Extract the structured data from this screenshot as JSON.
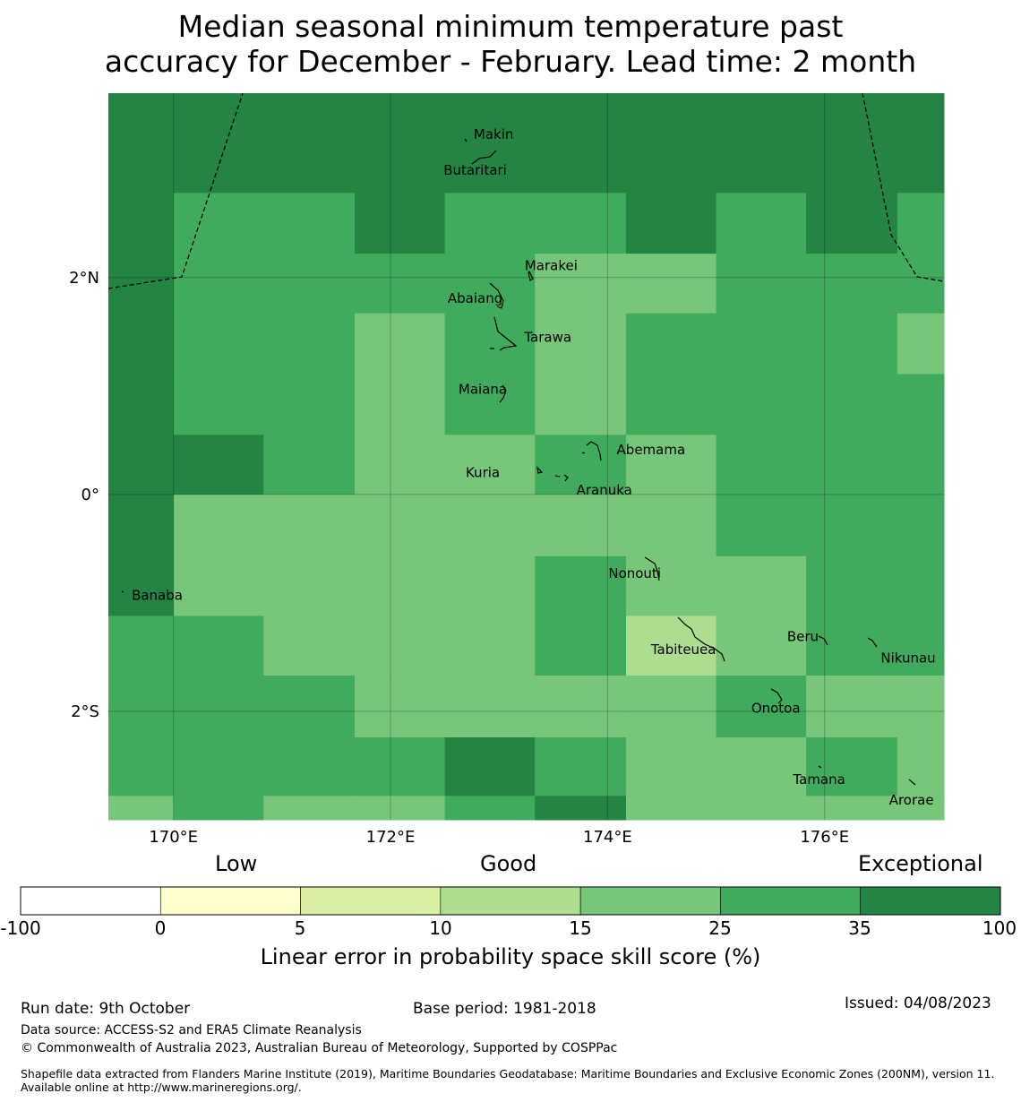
{
  "title": {
    "line1": "Median seasonal minimum temperature past",
    "line2": "accuracy for December - February. Lead time: 2 month"
  },
  "map": {
    "lon_range": [
      169.4,
      177.1
    ],
    "lat_range": [
      -3.0,
      3.7
    ],
    "lon_ticks": [
      {
        "value": 170,
        "label": "170°E"
      },
      {
        "value": 172,
        "label": "172°E"
      },
      {
        "value": 174,
        "label": "174°E"
      },
      {
        "value": 176,
        "label": "176°E"
      }
    ],
    "lat_ticks": [
      {
        "value": 2,
        "label": "2°N"
      },
      {
        "value": 0,
        "label": "0°"
      },
      {
        "value": -2,
        "label": "2°S"
      }
    ],
    "grid_lon_edges": [
      169.4,
      170.0,
      170.83,
      171.67,
      172.5,
      173.33,
      174.17,
      175.0,
      175.83,
      176.67,
      177.1
    ],
    "grid_lat_edges": [
      3.7,
      2.78,
      2.22,
      1.67,
      1.11,
      0.55,
      0.0,
      -0.57,
      -1.12,
      -1.67,
      -2.24,
      -2.78,
      -3.0
    ],
    "cell_classes": [
      [
        6,
        6,
        6,
        6,
        6,
        6,
        6,
        6,
        6,
        6
      ],
      [
        6,
        5,
        5,
        6,
        5,
        5,
        6,
        5,
        6,
        5
      ],
      [
        6,
        5,
        5,
        5,
        5,
        4,
        4,
        5,
        5,
        5
      ],
      [
        6,
        5,
        5,
        4,
        5,
        4,
        5,
        5,
        5,
        4
      ],
      [
        6,
        5,
        5,
        4,
        5,
        4,
        5,
        5,
        5,
        5
      ],
      [
        6,
        6,
        5,
        4,
        4,
        5,
        4,
        5,
        5,
        5
      ],
      [
        6,
        4,
        4,
        4,
        4,
        4,
        4,
        5,
        5,
        5
      ],
      [
        6,
        4,
        4,
        4,
        4,
        5,
        4,
        4,
        5,
        5
      ],
      [
        5,
        5,
        4,
        4,
        4,
        5,
        3,
        4,
        5,
        5
      ],
      [
        5,
        5,
        5,
        4,
        4,
        4,
        4,
        5,
        4,
        4
      ],
      [
        5,
        5,
        5,
        5,
        6,
        5,
        4,
        4,
        5,
        4
      ],
      [
        4,
        5,
        4,
        4,
        5,
        6,
        4,
        4,
        4,
        4
      ]
    ],
    "places": [
      {
        "name": "Makin",
        "lon": 172.95,
        "lat": 3.32
      },
      {
        "name": "Butaritari",
        "lon": 172.78,
        "lat": 2.99
      },
      {
        "name": "Marakei",
        "lon": 173.48,
        "lat": 2.11
      },
      {
        "name": "Abaiang",
        "lon": 172.78,
        "lat": 1.81
      },
      {
        "name": "Tarawa",
        "lon": 173.45,
        "lat": 1.45
      },
      {
        "name": "Maiana",
        "lon": 172.85,
        "lat": 0.97
      },
      {
        "name": "Abemama",
        "lon": 174.4,
        "lat": 0.41
      },
      {
        "name": "Kuria",
        "lon": 172.85,
        "lat": 0.2
      },
      {
        "name": "Aranuka",
        "lon": 173.97,
        "lat": 0.04
      },
      {
        "name": "Nonouti",
        "lon": 174.25,
        "lat": -0.73
      },
      {
        "name": "Banaba",
        "lon": 169.85,
        "lat": -0.93
      },
      {
        "name": "Beru",
        "lon": 175.8,
        "lat": -1.31
      },
      {
        "name": "Tabiteuea",
        "lon": 174.7,
        "lat": -1.43
      },
      {
        "name": "Nikunau",
        "lon": 176.77,
        "lat": -1.51
      },
      {
        "name": "Onotoa",
        "lon": 175.55,
        "lat": -1.97
      },
      {
        "name": "Tamana",
        "lon": 175.95,
        "lat": -2.63
      },
      {
        "name": "Arorae",
        "lon": 176.8,
        "lat": -2.82
      }
    ]
  },
  "legend": {
    "categories": [
      "Low",
      "Good",
      "Exceptional"
    ],
    "bins": [
      {
        "from": -100,
        "to": 0,
        "color": "#ffffff"
      },
      {
        "from": 0,
        "to": 5,
        "color": "#ffffcc"
      },
      {
        "from": 5,
        "to": 10,
        "color": "#d9f0a3"
      },
      {
        "from": 10,
        "to": 15,
        "color": "#addd8e"
      },
      {
        "from": 15,
        "to": 25,
        "color": "#78c679"
      },
      {
        "from": 25,
        "to": 35,
        "color": "#41ab5d"
      },
      {
        "from": 35,
        "to": 100,
        "color": "#238443"
      }
    ],
    "tick_labels": [
      "-100",
      "0",
      "5",
      "10",
      "15",
      "25",
      "35",
      "100"
    ],
    "label": "Linear error in probability space skill score (%)"
  },
  "footer": {
    "run_date": "Run date: 9th October",
    "base_period": "Base period: 1981-2018",
    "issued": "Issued: 04/08/2023",
    "data_source": "Data source: ACCESS-S2 and ERA5 Climate Reanalysis",
    "copyright": "© Commonwealth of Australia 2023, Australian Bureau of Meteorology, Supported by COSPPac",
    "shapefile": "Shapefile data extracted from Flanders Marine Institute (2019), Maritime Boundaries Geodatabase: Maritime Boundaries and Exclusive Economic Zones (200NM), version 11. Available online at http://www.marineregions.org/."
  }
}
